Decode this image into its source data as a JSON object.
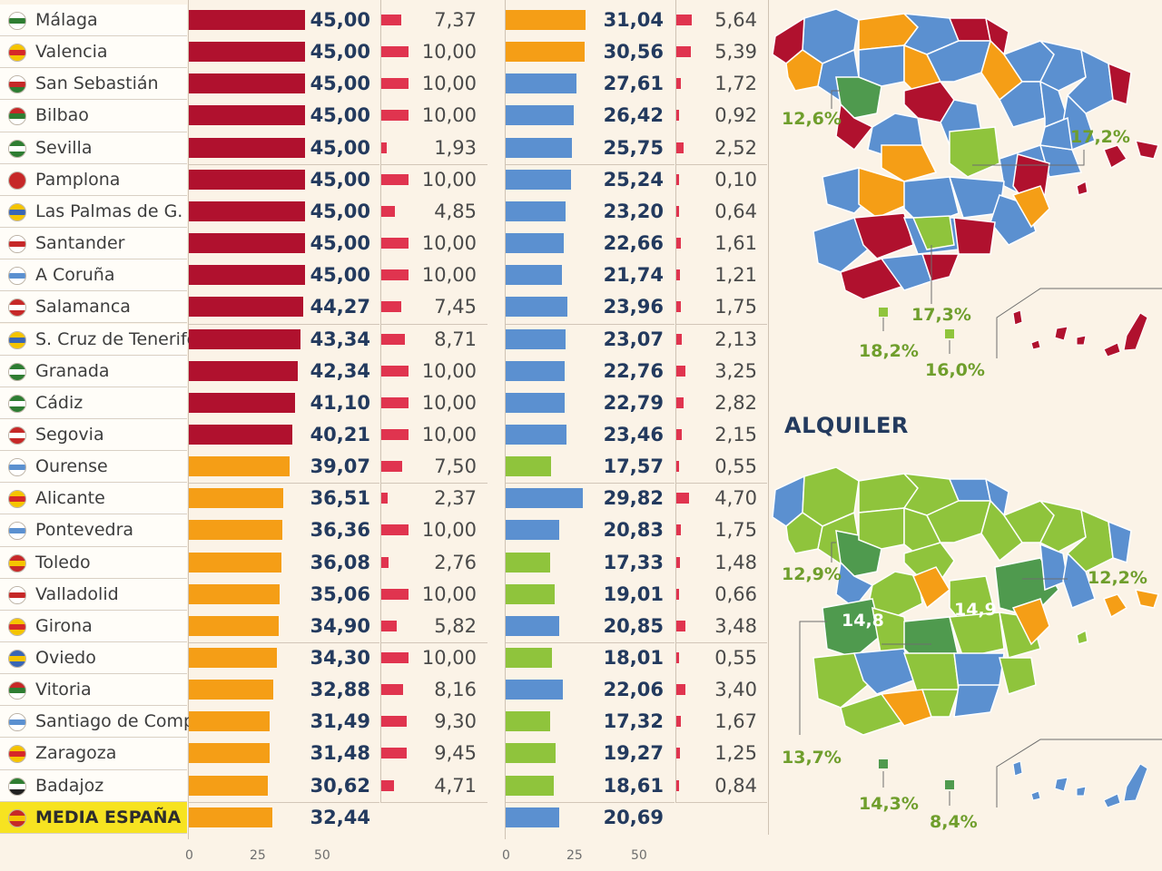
{
  "colors": {
    "red": "#b0112e",
    "orange": "#f59e16",
    "blue": "#5b90d0",
    "green": "#8fc43c",
    "dark_green": "#4f9a4e",
    "mini_bar": "#e0344f",
    "highlight": "#f7e321"
  },
  "chart_data": [
    {
      "type": "bar",
      "orientation": "horizontal",
      "categories": [
        "Málaga",
        "Valencia",
        "San Sebastián",
        "Bilbao",
        "Sevilla",
        "Pamplona",
        "Las Palmas de G. C.",
        "Santander",
        "A Coruña",
        "Salamanca",
        "S. Cruz de Tenerife",
        "Granada",
        "Cádiz",
        "Segovia",
        "Ourense",
        "Alicante",
        "Pontevedra",
        "Toledo",
        "Valladolid",
        "Girona",
        "Oviedo",
        "Vitoria",
        "Santiago de Comp.",
        "Zaragoza",
        "Badajoz",
        "MEDIA ESPAÑA"
      ],
      "values": [
        45.0,
        45.0,
        45.0,
        45.0,
        45.0,
        45.0,
        45.0,
        45.0,
        45.0,
        44.27,
        43.34,
        42.34,
        41.1,
        40.21,
        39.07,
        36.51,
        36.36,
        36.08,
        35.06,
        34.9,
        34.3,
        32.88,
        31.49,
        31.48,
        30.62,
        32.44
      ],
      "value_labels": [
        "45,00",
        "45,00",
        "45,00",
        "45,00",
        "45,00",
        "45,00",
        "45,00",
        "45,00",
        "45,00",
        "44,27",
        "43,34",
        "42,34",
        "41,10",
        "40,21",
        "39,07",
        "36,51",
        "36,36",
        "36,08",
        "35,06",
        "34,90",
        "34,30",
        "32,88",
        "31,49",
        "31,48",
        "30,62",
        "32,44"
      ],
      "bar_colors": [
        "red",
        "red",
        "red",
        "red",
        "red",
        "red",
        "red",
        "red",
        "red",
        "red",
        "red",
        "red",
        "red",
        "red",
        "orange",
        "orange",
        "orange",
        "orange",
        "orange",
        "orange",
        "orange",
        "orange",
        "orange",
        "orange",
        "orange",
        "orange"
      ],
      "xlim": [
        0,
        50
      ],
      "x_ticks": [
        "0",
        "25",
        "50"
      ]
    },
    {
      "type": "bar",
      "orientation": "horizontal",
      "categories": [
        "Málaga",
        "Valencia",
        "San Sebastián",
        "Bilbao",
        "Sevilla",
        "Pamplona",
        "Las Palmas de G. C.",
        "Santander",
        "A Coruña",
        "Salamanca",
        "S. Cruz de Tenerife",
        "Granada",
        "Cádiz",
        "Segovia",
        "Ourense",
        "Alicante",
        "Pontevedra",
        "Toledo",
        "Valladolid",
        "Girona",
        "Oviedo",
        "Vitoria",
        "Santiago de Comp.",
        "Zaragoza",
        "Badajoz"
      ],
      "values": [
        7.37,
        10.0,
        10.0,
        10.0,
        1.93,
        10.0,
        4.85,
        10.0,
        10.0,
        7.45,
        8.71,
        10.0,
        10.0,
        10.0,
        7.5,
        2.37,
        10.0,
        2.76,
        10.0,
        5.82,
        10.0,
        8.16,
        9.3,
        9.45,
        4.71
      ],
      "value_labels": [
        "7,37",
        "10,00",
        "10,00",
        "10,00",
        "1,93",
        "10,00",
        "4,85",
        "10,00",
        "10,00",
        "7,45",
        "8,71",
        "10,00",
        "10,00",
        "10,00",
        "7,50",
        "2,37",
        "10,00",
        "2,76",
        "10,00",
        "5,82",
        "10,00",
        "8,16",
        "9,30",
        "9,45",
        "4,71"
      ],
      "xlim": [
        0,
        10
      ]
    },
    {
      "type": "bar",
      "orientation": "horizontal",
      "categories": [
        "Málaga",
        "Valencia",
        "San Sebastián",
        "Bilbao",
        "Sevilla",
        "Pamplona",
        "Las Palmas de G. C.",
        "Santander",
        "A Coruña",
        "Salamanca",
        "S. Cruz de Tenerife",
        "Granada",
        "Cádiz",
        "Segovia",
        "Ourense",
        "Alicante",
        "Pontevedra",
        "Toledo",
        "Valladolid",
        "Girona",
        "Oviedo",
        "Vitoria",
        "Santiago de Comp.",
        "Zaragoza",
        "Badajoz",
        "MEDIA ESPAÑA"
      ],
      "values": [
        31.04,
        30.56,
        27.61,
        26.42,
        25.75,
        25.24,
        23.2,
        22.66,
        21.74,
        23.96,
        23.07,
        22.76,
        22.79,
        23.46,
        17.57,
        29.82,
        20.83,
        17.33,
        19.01,
        20.85,
        18.01,
        22.06,
        17.32,
        19.27,
        18.61,
        20.69
      ],
      "value_labels": [
        "31,04",
        "30,56",
        "27,61",
        "26,42",
        "25,75",
        "25,24",
        "23,20",
        "22,66",
        "21,74",
        "23,96",
        "23,07",
        "22,76",
        "22,79",
        "23,46",
        "17,57",
        "29,82",
        "20,83",
        "17,33",
        "19,01",
        "20,85",
        "18,01",
        "22,06",
        "17,32",
        "19,27",
        "18,61",
        "20,69"
      ],
      "bar_colors": [
        "orange",
        "orange",
        "blue",
        "blue",
        "blue",
        "blue",
        "blue",
        "blue",
        "blue",
        "blue",
        "blue",
        "blue",
        "blue",
        "blue",
        "green",
        "blue",
        "blue",
        "green",
        "green",
        "blue",
        "green",
        "blue",
        "green",
        "green",
        "green",
        "blue"
      ],
      "xlim": [
        0,
        50
      ],
      "x_ticks": [
        "0",
        "25",
        "50"
      ]
    },
    {
      "type": "bar",
      "orientation": "horizontal",
      "categories": [
        "Málaga",
        "Valencia",
        "San Sebastián",
        "Bilbao",
        "Sevilla",
        "Pamplona",
        "Las Palmas de G. C.",
        "Santander",
        "A Coruña",
        "Salamanca",
        "S. Cruz de Tenerife",
        "Granada",
        "Cádiz",
        "Segovia",
        "Ourense",
        "Alicante",
        "Pontevedra",
        "Toledo",
        "Valladolid",
        "Girona",
        "Oviedo",
        "Vitoria",
        "Santiago de Comp.",
        "Zaragoza",
        "Badajoz"
      ],
      "values": [
        5.64,
        5.39,
        1.72,
        0.92,
        2.52,
        0.1,
        0.64,
        1.61,
        1.21,
        1.75,
        2.13,
        3.25,
        2.82,
        2.15,
        0.55,
        4.7,
        1.75,
        1.48,
        0.66,
        3.48,
        0.55,
        3.4,
        1.67,
        1.25,
        0.84
      ],
      "value_labels": [
        "5,64",
        "5,39",
        "1,72",
        "0,92",
        "2,52",
        "0,10",
        "0,64",
        "1,61",
        "1,21",
        "1,75",
        "2,13",
        "3,25",
        "2,82",
        "2,15",
        "0,55",
        "4,70",
        "1,75",
        "1,48",
        "0,66",
        "3,48",
        "0,55",
        "3,40",
        "1,67",
        "1,25",
        "0,84"
      ],
      "xlim": [
        0,
        10
      ]
    }
  ],
  "maps": {
    "top": {
      "labels": [
        "12,6%",
        "17,2%",
        "17,3%",
        "18,2%",
        "16,0%"
      ]
    },
    "bottom": {
      "title": "ALQUILER",
      "labels": [
        "12,9%",
        "12,2%",
        "14,8",
        "14,9",
        "13,7%",
        "14,3%",
        "8,4%"
      ]
    }
  }
}
